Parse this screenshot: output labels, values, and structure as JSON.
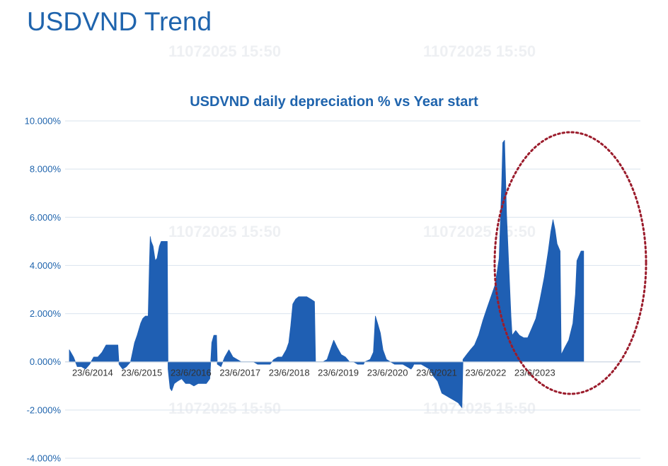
{
  "slide": {
    "title": "USDVND Trend",
    "watermark": "11072025 15:50"
  },
  "colors": {
    "title": "#1f64ad",
    "bar": "#1f5fb3",
    "grid": "#d9e3ee",
    "highlight": "#9b1c2c",
    "watermark": "#eef0f3"
  },
  "chart_data": {
    "type": "area",
    "title": "USDVND daily depreciation % vs Year start",
    "xlabel": "",
    "ylabel": "",
    "ylim": [
      -4,
      10
    ],
    "y_tick_labels": [
      "10.000%",
      "8.000%",
      "6.000%",
      "4.000%",
      "2.000%",
      "0.000%",
      "-2.000%",
      "-4.000%"
    ],
    "x_tick_labels": [
      "23/6/2014",
      "23/6/2015",
      "23/6/2016",
      "23/6/2017",
      "23/6/2018",
      "23/6/2019",
      "23/6/2020",
      "23/6/2021",
      "23/6/2022",
      "23/6/2023"
    ],
    "xlim": [
      "2014-01-01",
      "2025-07-10"
    ],
    "grid": true,
    "legend": "none",
    "series": [
      {
        "values_unit": "% vs year start",
        "points": [
          [
            "2014-01-01",
            0.5
          ],
          [
            "2014-02-01",
            0.2
          ],
          [
            "2014-03-01",
            -0.2
          ],
          [
            "2014-04-01",
            -0.2
          ],
          [
            "2014-05-01",
            -0.3
          ],
          [
            "2014-06-01",
            -0.1
          ],
          [
            "2014-07-01",
            0.2
          ],
          [
            "2014-08-01",
            0.2
          ],
          [
            "2014-09-01",
            0.4
          ],
          [
            "2014-10-01",
            0.7
          ],
          [
            "2014-11-01",
            0.7
          ],
          [
            "2014-12-01",
            0.7
          ],
          [
            "2014-12-28",
            0.7
          ],
          [
            "2015-01-05",
            -0.1
          ],
          [
            "2015-02-01",
            -0.3
          ],
          [
            "2015-03-01",
            -0.2
          ],
          [
            "2015-04-01",
            0.0
          ],
          [
            "2015-05-01",
            0.8
          ],
          [
            "2015-05-20",
            1.1
          ],
          [
            "2015-06-15",
            1.6
          ],
          [
            "2015-07-01",
            1.8
          ],
          [
            "2015-07-20",
            1.9
          ],
          [
            "2015-08-10",
            1.9
          ],
          [
            "2015-08-19",
            4.0
          ],
          [
            "2015-08-25",
            5.2
          ],
          [
            "2015-09-01",
            5.0
          ],
          [
            "2015-09-15",
            4.8
          ],
          [
            "2015-10-01",
            4.2
          ],
          [
            "2015-10-15",
            4.3
          ],
          [
            "2015-11-01",
            4.8
          ],
          [
            "2015-11-15",
            5.0
          ],
          [
            "2015-12-15",
            5.0
          ],
          [
            "2015-12-30",
            5.0
          ],
          [
            "2016-01-05",
            -0.3
          ],
          [
            "2016-01-20",
            -1.1
          ],
          [
            "2016-02-01",
            -1.2
          ],
          [
            "2016-02-20",
            -0.9
          ],
          [
            "2016-03-15",
            -0.8
          ],
          [
            "2016-04-15",
            -0.7
          ],
          [
            "2016-05-15",
            -0.9
          ],
          [
            "2016-06-15",
            -0.9
          ],
          [
            "2016-07-15",
            -1.0
          ],
          [
            "2016-08-15",
            -0.9
          ],
          [
            "2016-09-15",
            -0.9
          ],
          [
            "2016-10-15",
            -0.9
          ],
          [
            "2016-11-10",
            -0.7
          ],
          [
            "2016-11-25",
            0.8
          ],
          [
            "2016-12-10",
            1.1
          ],
          [
            "2016-12-30",
            1.1
          ],
          [
            "2017-01-05",
            -0.1
          ],
          [
            "2017-02-01",
            -0.2
          ],
          [
            "2017-03-01",
            0.2
          ],
          [
            "2017-04-01",
            0.5
          ],
          [
            "2017-05-01",
            0.2
          ],
          [
            "2017-06-01",
            0.1
          ],
          [
            "2017-07-01",
            0.0
          ],
          [
            "2017-08-01",
            0.0
          ],
          [
            "2017-09-01",
            0.0
          ],
          [
            "2017-10-01",
            0.0
          ],
          [
            "2017-11-01",
            -0.1
          ],
          [
            "2017-12-01",
            -0.1
          ],
          [
            "2017-12-28",
            -0.1
          ],
          [
            "2018-01-05",
            -0.1
          ],
          [
            "2018-02-01",
            -0.1
          ],
          [
            "2018-03-01",
            0.1
          ],
          [
            "2018-04-01",
            0.2
          ],
          [
            "2018-05-01",
            0.2
          ],
          [
            "2018-06-01",
            0.5
          ],
          [
            "2018-06-20",
            0.8
          ],
          [
            "2018-07-05",
            1.5
          ],
          [
            "2018-07-20",
            2.4
          ],
          [
            "2018-08-10",
            2.6
          ],
          [
            "2018-09-01",
            2.7
          ],
          [
            "2018-10-01",
            2.7
          ],
          [
            "2018-11-01",
            2.7
          ],
          [
            "2018-12-01",
            2.6
          ],
          [
            "2018-12-28",
            2.5
          ],
          [
            "2019-01-05",
            0.0
          ],
          [
            "2019-02-01",
            0.0
          ],
          [
            "2019-03-01",
            0.0
          ],
          [
            "2019-04-01",
            0.1
          ],
          [
            "2019-05-01",
            0.6
          ],
          [
            "2019-05-20",
            0.9
          ],
          [
            "2019-06-15",
            0.6
          ],
          [
            "2019-07-15",
            0.3
          ],
          [
            "2019-08-15",
            0.2
          ],
          [
            "2019-09-15",
            0.0
          ],
          [
            "2019-10-15",
            0.0
          ],
          [
            "2019-11-15",
            -0.1
          ],
          [
            "2019-12-15",
            -0.1
          ],
          [
            "2019-12-28",
            -0.1
          ],
          [
            "2020-01-05",
            0.0
          ],
          [
            "2020-02-15",
            0.1
          ],
          [
            "2020-03-10",
            0.4
          ],
          [
            "2020-03-25",
            1.9
          ],
          [
            "2020-04-10",
            1.6
          ],
          [
            "2020-05-01",
            1.2
          ],
          [
            "2020-05-20",
            0.5
          ],
          [
            "2020-06-15",
            0.1
          ],
          [
            "2020-07-15",
            0.0
          ],
          [
            "2020-08-15",
            -0.1
          ],
          [
            "2020-09-15",
            -0.1
          ],
          [
            "2020-10-15",
            -0.1
          ],
          [
            "2020-11-15",
            -0.2
          ],
          [
            "2020-12-15",
            -0.3
          ],
          [
            "2020-12-28",
            -0.2
          ],
          [
            "2021-01-05",
            -0.1
          ],
          [
            "2021-02-01",
            -0.1
          ],
          [
            "2021-03-01",
            -0.1
          ],
          [
            "2021-04-01",
            -0.2
          ],
          [
            "2021-05-01",
            -0.3
          ],
          [
            "2021-06-01",
            -0.6
          ],
          [
            "2021-07-01",
            -0.8
          ],
          [
            "2021-08-01",
            -1.3
          ],
          [
            "2021-09-01",
            -1.4
          ],
          [
            "2021-10-01",
            -1.5
          ],
          [
            "2021-11-01",
            -1.6
          ],
          [
            "2021-12-01",
            -1.7
          ],
          [
            "2021-12-28",
            -1.9
          ],
          [
            "2022-01-05",
            0.1
          ],
          [
            "2022-02-01",
            0.3
          ],
          [
            "2022-03-01",
            0.5
          ],
          [
            "2022-04-01",
            0.7
          ],
          [
            "2022-05-01",
            1.1
          ],
          [
            "2022-06-01",
            1.7
          ],
          [
            "2022-07-01",
            2.2
          ],
          [
            "2022-08-01",
            2.7
          ],
          [
            "2022-09-01",
            3.2
          ],
          [
            "2022-10-01",
            4.3
          ],
          [
            "2022-10-20",
            7.4
          ],
          [
            "2022-10-28",
            9.1
          ],
          [
            "2022-11-10",
            9.2
          ],
          [
            "2022-11-25",
            6.1
          ],
          [
            "2022-12-10",
            4.2
          ],
          [
            "2022-12-28",
            1.9
          ],
          [
            "2023-01-05",
            1.1
          ],
          [
            "2023-02-01",
            1.3
          ],
          [
            "2023-03-01",
            1.1
          ],
          [
            "2023-04-01",
            1.0
          ],
          [
            "2023-05-01",
            1.0
          ],
          [
            "2023-06-01",
            1.4
          ],
          [
            "2023-07-01",
            1.8
          ],
          [
            "2023-08-01",
            2.6
          ],
          [
            "2023-09-01",
            3.5
          ],
          [
            "2023-10-01",
            4.6
          ],
          [
            "2023-10-20",
            5.4
          ],
          [
            "2023-11-05",
            5.9
          ],
          [
            "2023-11-20",
            5.5
          ],
          [
            "2023-12-05",
            4.9
          ],
          [
            "2023-12-28",
            4.6
          ],
          [
            "2024-01-05",
            0.3
          ],
          [
            "2024-02-01",
            0.6
          ],
          [
            "2024-03-01",
            0.9
          ],
          [
            "2024-04-01",
            1.6
          ],
          [
            "2024-04-20",
            2.8
          ],
          [
            "2024-05-01",
            4.2
          ],
          [
            "2024-06-01",
            4.6
          ],
          [
            "2024-06-20",
            4.6
          ]
        ]
      }
    ]
  }
}
